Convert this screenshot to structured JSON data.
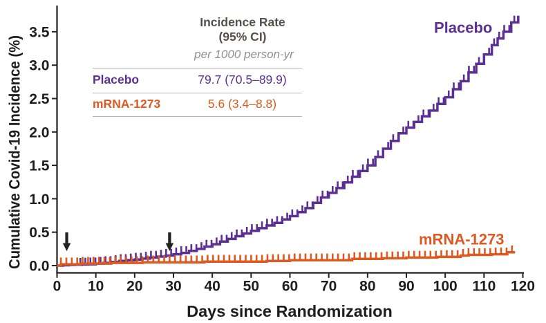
{
  "page": {
    "background": "#ffffff"
  },
  "chart_data": {
    "type": "line",
    "subtype": "cumulative-incidence-step-curves-with-censor-ticks",
    "title": "",
    "xlabel": "Days since Randomization",
    "ylabel": "Cumulative Covid-19 Incidence (%)",
    "xlim": [
      0,
      120
    ],
    "ylim": [
      0,
      3.87
    ],
    "grid": false,
    "x_ticks": [
      0,
      10,
      20,
      30,
      40,
      50,
      60,
      70,
      80,
      90,
      100,
      110,
      120
    ],
    "y_ticks": [
      0,
      0.5,
      1,
      1.5,
      2,
      2.5,
      3,
      3.5
    ],
    "y_tick_labels": [
      "0.0",
      "0.5",
      "1.0",
      "1.5",
      "2.0",
      "2.5",
      "3.0",
      "3.5"
    ],
    "arrow_marker_days": [
      2.5,
      29
    ],
    "series": [
      {
        "name": "Placebo",
        "color": "#5c2f92",
        "subdivide_days": 2,
        "tick_start": 6,
        "tick_gap": 1.3,
        "tick_end": 118.5,
        "tick_len": 8.5,
        "points": [
          [
            0,
            0
          ],
          [
            3,
            0.01
          ],
          [
            8,
            0.02
          ],
          [
            12,
            0.04
          ],
          [
            16,
            0.07
          ],
          [
            20,
            0.09
          ],
          [
            24,
            0.12
          ],
          [
            28,
            0.15
          ],
          [
            32,
            0.19
          ],
          [
            36,
            0.25
          ],
          [
            40,
            0.32
          ],
          [
            44,
            0.4
          ],
          [
            48,
            0.48
          ],
          [
            52,
            0.56
          ],
          [
            56,
            0.64
          ],
          [
            60,
            0.74
          ],
          [
            64,
            0.86
          ],
          [
            68,
            1.02
          ],
          [
            72,
            1.16
          ],
          [
            76,
            1.33
          ],
          [
            80,
            1.5
          ],
          [
            84,
            1.75
          ],
          [
            88,
            1.98
          ],
          [
            92,
            2.15
          ],
          [
            96,
            2.32
          ],
          [
            100,
            2.52
          ],
          [
            104,
            2.76
          ],
          [
            108,
            3.02
          ],
          [
            112,
            3.3
          ],
          [
            115,
            3.5
          ],
          [
            117,
            3.64
          ],
          [
            118.8,
            3.74
          ]
        ]
      },
      {
        "name": "mRNA-1273",
        "color": "#dc5a20",
        "subdivide_days": 0,
        "tick_start": 1,
        "tick_gap": 1.4,
        "tick_end": 117.5,
        "tick_len": 8.5,
        "points": [
          [
            0,
            0
          ],
          [
            1,
            0.02
          ],
          [
            6,
            0.03
          ],
          [
            14,
            0.04
          ],
          [
            22,
            0.05
          ],
          [
            30,
            0.05
          ],
          [
            38,
            0.06
          ],
          [
            46,
            0.06
          ],
          [
            54,
            0.07
          ],
          [
            60,
            0.08
          ],
          [
            68,
            0.08
          ],
          [
            76,
            0.1
          ],
          [
            84,
            0.11
          ],
          [
            90,
            0.12
          ],
          [
            98,
            0.13
          ],
          [
            104,
            0.15
          ],
          [
            106,
            0.16
          ],
          [
            112,
            0.17
          ],
          [
            116,
            0.2
          ],
          [
            118,
            0.2
          ]
        ]
      }
    ]
  },
  "legend_table": {
    "header_line1": "Incidence Rate",
    "header_line2": "(95% CI)",
    "subheader": "per 1000 person-yr",
    "rows": [
      {
        "label": "Placebo",
        "value": "79.7 (70.5–89.9)",
        "color": "#5c2f92"
      },
      {
        "label": "mRNA-1273",
        "value": "5.6 (3.4–8.8)",
        "color": "#dc5a20"
      }
    ]
  },
  "colors": {
    "axis": "#231f20",
    "text": "#1d1d20",
    "arrow": "#232323",
    "table_header_text": "#565049",
    "table_subheader_text": "#8f8d8d",
    "table_rule": "#b7b2ac"
  }
}
